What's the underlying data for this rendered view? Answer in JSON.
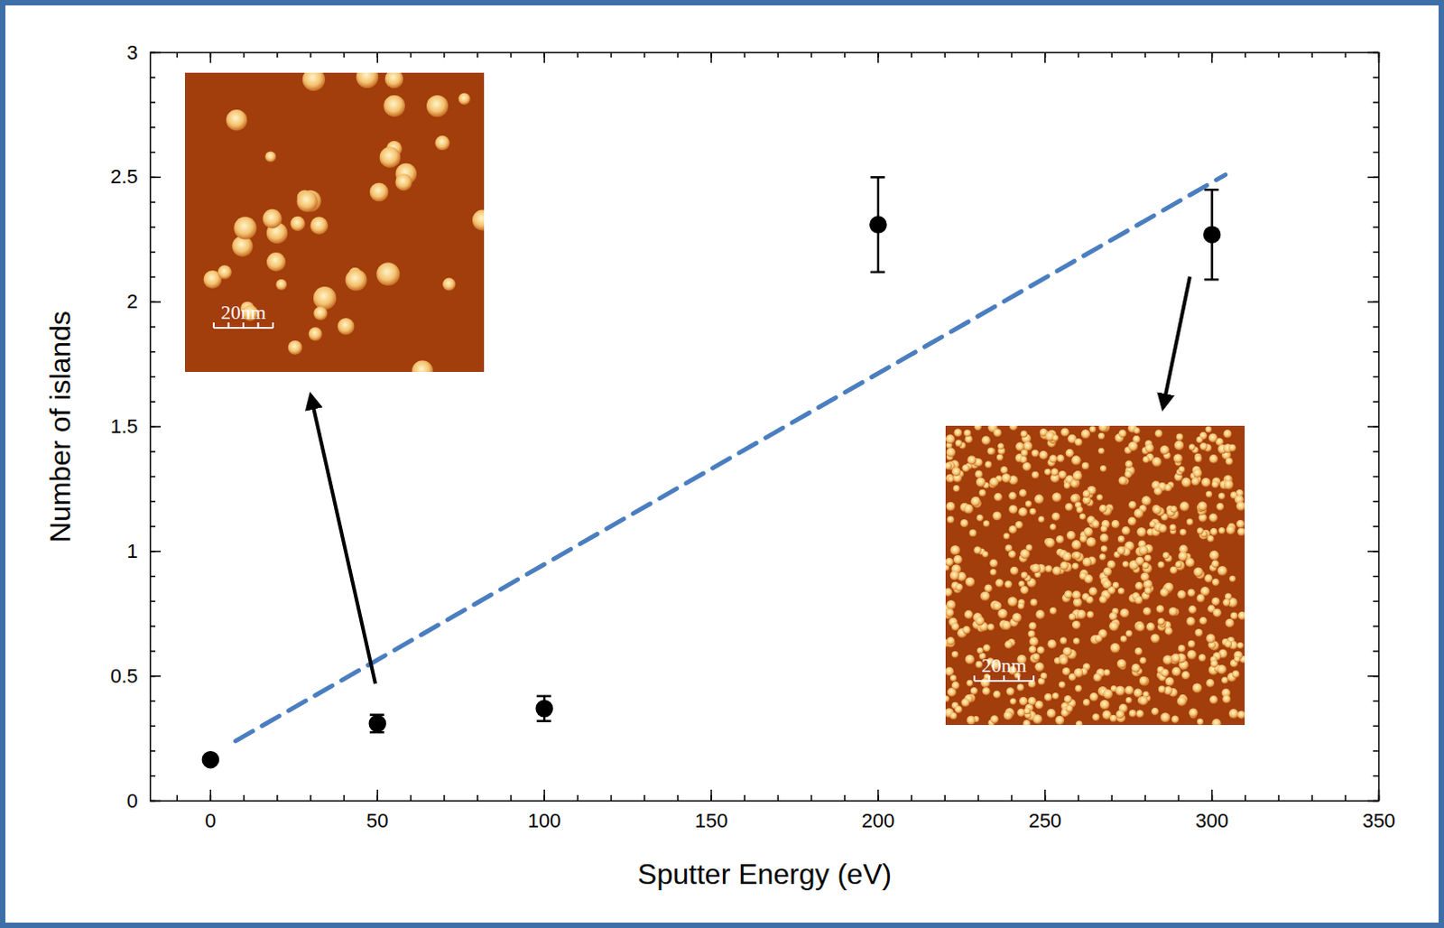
{
  "chart_data": {
    "type": "scatter",
    "x_label": "Sputter Energy (eV)",
    "y_label": "Number of islands",
    "xlim": [
      -18,
      350
    ],
    "ylim": [
      0,
      3
    ],
    "xticks": [
      0,
      50,
      100,
      150,
      200,
      250,
      300,
      350
    ],
    "yticks": [
      0,
      0.5,
      1,
      1.5,
      2,
      2.5,
      3
    ],
    "series": [
      {
        "type": "scatter",
        "x": [
          0,
          50,
          100,
          200,
          300
        ],
        "values": [
          0.165,
          0.31,
          0.37,
          2.31,
          2.27
        ],
        "errors": [
          0,
          0.035,
          0.05,
          0.19,
          0.18
        ],
        "color": "#000000",
        "marker": "circle"
      },
      {
        "type": "line",
        "x": [
          7.5,
          304
        ],
        "values": [
          0.24,
          2.51
        ],
        "color": "#4a7ebf",
        "line_style": "dashed"
      }
    ],
    "insets": [
      {
        "scale_bar": "20nm"
      },
      {
        "scale_bar": "20nm"
      }
    ]
  }
}
